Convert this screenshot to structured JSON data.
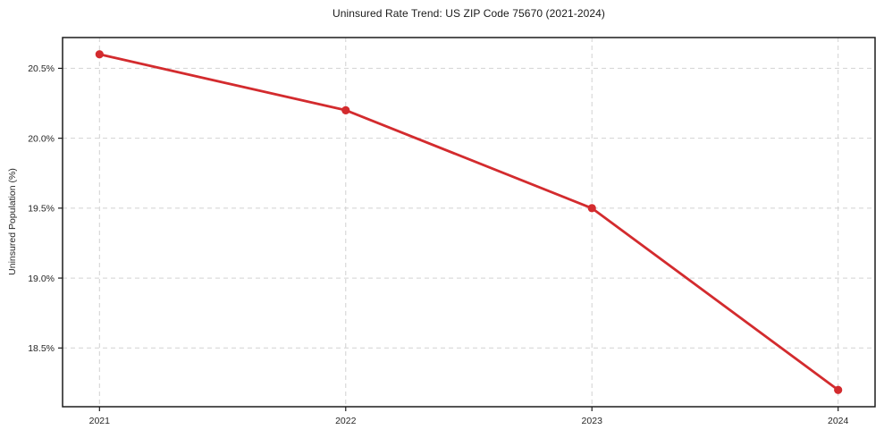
{
  "chart_data": {
    "type": "line",
    "title": "Uninsured Rate Trend: US ZIP Code 75670 (2021-2024)",
    "xlabel": "",
    "ylabel": "Uninsured Population (%)",
    "x": [
      2021,
      2022,
      2023,
      2024
    ],
    "values": [
      20.6,
      20.2,
      19.5,
      18.2
    ],
    "xticks": {
      "values": [
        2021,
        2022,
        2023,
        2024
      ],
      "labels": [
        "2021",
        "2022",
        "2023",
        "2024"
      ]
    },
    "yticks": {
      "values": [
        18.5,
        19.0,
        19.5,
        20.0,
        20.5
      ],
      "labels": [
        "18.5%",
        "19.0%",
        "19.5%",
        "20.0%",
        "20.5%"
      ]
    },
    "xlim": [
      2020.85,
      2024.15
    ],
    "ylim": [
      18.08,
      20.72
    ],
    "grid": "dashed-both-axes",
    "legend": "none",
    "marker": "circle",
    "colors": {
      "line": "#d32b2e",
      "marker": "#d32b2e",
      "grid": "#d2d2d2",
      "spine": "#1c1c1c",
      "text": "#262626",
      "background": "#ffffff"
    }
  }
}
